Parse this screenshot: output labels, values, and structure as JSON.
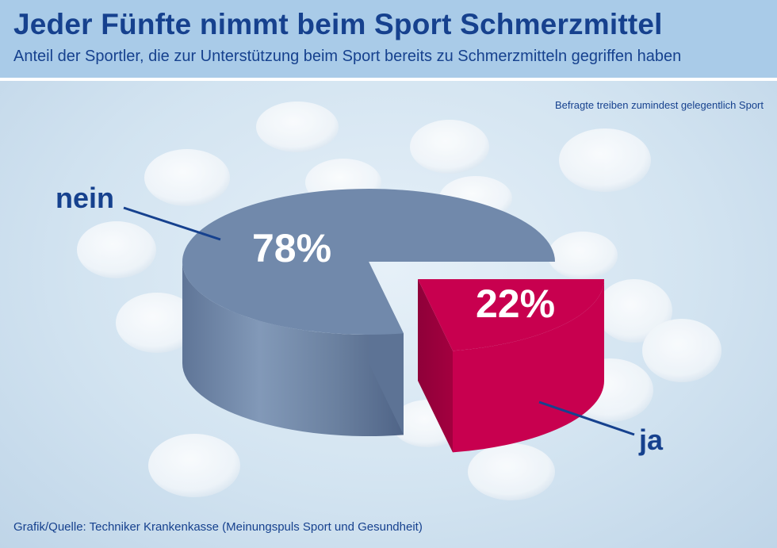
{
  "header": {
    "title": "Jeder Fünfte nimmt beim Sport Schmerzmittel",
    "subtitle": "Anteil der Sportler, die zur Unterstützung beim Sport bereits zu Schmerzmitteln gegriffen haben"
  },
  "note": "Befragte treiben zumindest gelegentlich Sport",
  "source": "Grafik/Quelle: Techniker Krankenkasse (Meinungspuls Sport und Gesundheit)",
  "colors": {
    "nein": "#7189ab",
    "ja": "#c8004f",
    "text": "#16418e"
  },
  "chart_data": {
    "type": "pie",
    "title": "Jeder Fünfte nimmt beim Sport Schmerzmittel",
    "subtitle": "Anteil der Sportler, die zur Unterstützung beim Sport bereits zu Schmerzmitteln gegriffen haben",
    "categories": [
      "nein",
      "ja"
    ],
    "values": [
      78,
      22
    ],
    "value_labels": [
      "78%",
      "22%"
    ],
    "unit": "%",
    "exploded": "ja",
    "style": "3d"
  }
}
